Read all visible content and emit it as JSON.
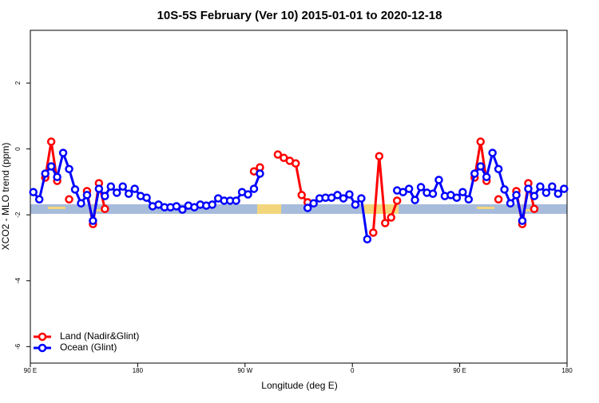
{
  "chart_data": {
    "type": "line",
    "title": "10S-5S February (Ver 10)   2015-01-01 to 2020-12-18",
    "x_label": "Longitude (deg E)",
    "y_label": "XCO2 - MLO trend (ppm)",
    "x": [
      92.5,
      97.5,
      102.5,
      107.5,
      112.5,
      117.5,
      122.5,
      127.5,
      132.5,
      137.5,
      142.5,
      147.5,
      152.5,
      157.5,
      162.5,
      167.5,
      172.5,
      177.5,
      182.5,
      187.5,
      192.5,
      197.5,
      202.5,
      207.5,
      212.5,
      217.5,
      222.5,
      227.5,
      232.5,
      237.5,
      242.5,
      247.5,
      252.5,
      257.5,
      262.5,
      267.5,
      272.5,
      277.5,
      282.5,
      287.5,
      292.5,
      297.5,
      302.5,
      307.5,
      312.5,
      317.5,
      322.5,
      327.5,
      332.5,
      337.5,
      342.5,
      347.5,
      352.5,
      357.5,
      362.5,
      367.5,
      372.5,
      377.5,
      382.5,
      387.5,
      392.5,
      397.5,
      402.5,
      407.5,
      412.5,
      417.5,
      422.5,
      427.5,
      432.5,
      437.5,
      442.5,
      447.5,
      452.5,
      457.5,
      462.5,
      467.5,
      472.5,
      477.5,
      482.5,
      487.5,
      492.5,
      497.5,
      502.5,
      507.5,
      512.5,
      517.5,
      522.5,
      527.5,
      532.5,
      537.5
    ],
    "series": [
      {
        "name": "Land (Nadir&Glint)",
        "color": "#ff0000",
        "values": [
          null,
          null,
          -0.87,
          0.22,
          -0.97,
          null,
          -1.53,
          null,
          null,
          -1.28,
          -2.28,
          -1.04,
          -1.82,
          null,
          null,
          null,
          null,
          null,
          null,
          null,
          null,
          null,
          null,
          null,
          null,
          null,
          null,
          null,
          null,
          null,
          null,
          null,
          null,
          null,
          null,
          null,
          null,
          -0.68,
          -0.56,
          null,
          null,
          -0.17,
          -0.27,
          -0.36,
          -0.44,
          -1.4,
          -1.62,
          null,
          null,
          null,
          null,
          null,
          null,
          null,
          null,
          null,
          null,
          -2.54,
          -0.22,
          -2.25,
          -2.08,
          -1.57,
          null,
          null,
          null,
          null,
          null,
          null,
          null,
          null,
          null,
          null,
          null,
          null,
          -0.87,
          0.22,
          -0.97,
          null,
          -1.53,
          null,
          null,
          -1.28,
          -2.28,
          -1.04,
          -1.82,
          null,
          null,
          null,
          null,
          null
        ]
      },
      {
        "name": "Ocean (Glint)",
        "color": "#0000ff",
        "values": [
          -1.31,
          -1.53,
          -0.75,
          -0.53,
          -0.85,
          -0.12,
          -0.61,
          -1.23,
          -1.65,
          -1.4,
          -2.18,
          -1.21,
          -1.43,
          -1.14,
          -1.33,
          -1.14,
          -1.36,
          -1.21,
          -1.43,
          -1.48,
          -1.74,
          -1.69,
          -1.77,
          -1.77,
          -1.74,
          -1.84,
          -1.72,
          -1.77,
          -1.69,
          -1.72,
          -1.69,
          -1.5,
          -1.57,
          -1.57,
          -1.57,
          -1.31,
          -1.38,
          -1.21,
          -0.75,
          null,
          null,
          null,
          null,
          null,
          null,
          null,
          -1.79,
          -1.65,
          -1.5,
          -1.48,
          -1.48,
          -1.4,
          -1.5,
          -1.38,
          -1.69,
          -1.5,
          -2.74,
          null,
          null,
          null,
          null,
          -1.26,
          -1.31,
          -1.21,
          -1.55,
          -1.16,
          -1.33,
          -1.36,
          -0.94,
          -1.43,
          -1.4,
          -1.48,
          -1.31,
          -1.53,
          -0.75,
          -0.53,
          -0.85,
          -0.12,
          -0.61,
          -1.23,
          -1.65,
          -1.4,
          -2.18,
          -1.21,
          -1.43,
          -1.14,
          -1.33,
          -1.14,
          -1.36,
          -1.21
        ]
      }
    ],
    "xlim": [
      90,
      540
    ],
    "xticks": [
      {
        "value": 90,
        "label": "90 E"
      },
      180,
      {
        "value": 270,
        "label": "90 W"
      },
      {
        "value": 360,
        "label": "0"
      },
      {
        "value": 450,
        "label": "90 E"
      },
      {
        "value": 540,
        "label": "180"
      }
    ],
    "ylim": [
      -6.5,
      3.6
    ],
    "yticks": [
      2,
      0,
      -2,
      -4,
      -6
    ],
    "legend": "bottom-left"
  }
}
